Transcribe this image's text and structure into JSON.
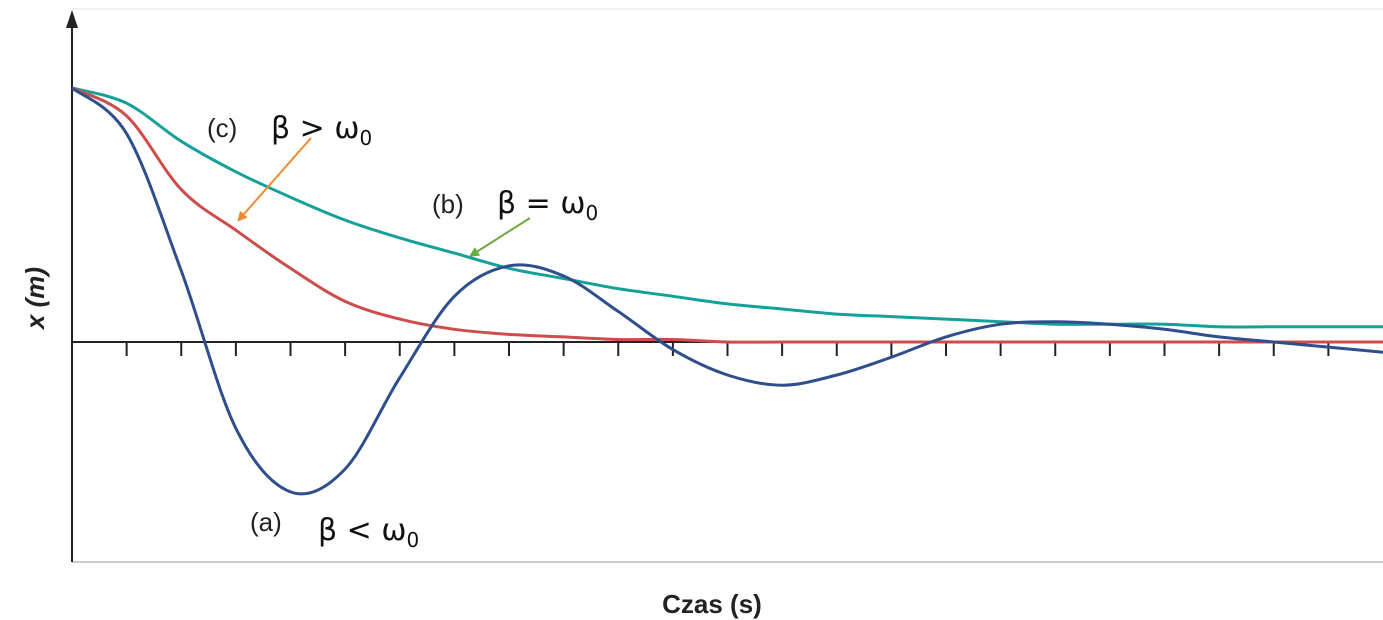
{
  "chart_data": {
    "type": "line",
    "title": "",
    "xlabel": "Czas (s)",
    "ylabel": "x (m)",
    "xlim": [
      0,
      24
    ],
    "ylim": [
      -1.0,
      1.3
    ],
    "x_ticks": [
      1,
      2,
      3,
      4,
      5,
      6,
      7,
      8,
      9,
      10,
      11,
      12,
      13,
      14,
      15,
      16,
      17,
      18,
      19,
      20,
      21,
      22,
      23
    ],
    "grid": false,
    "legend": "none",
    "colors": {
      "a": "#2e4f8c",
      "b": "#16a09a",
      "c": "#cf4c4c",
      "arrow_c": "#f08a32",
      "arrow_b": "#6aab3f",
      "axis": "#222222"
    },
    "series": [
      {
        "key": "a",
        "x": [
          0,
          1,
          2,
          3,
          4,
          5,
          6,
          7,
          8,
          9,
          10,
          11,
          12,
          13,
          14,
          15,
          16,
          17,
          18,
          19,
          20,
          21,
          22,
          23,
          24
        ],
        "y": [
          1.0,
          0.82,
          0.28,
          -0.34,
          -0.59,
          -0.5,
          -0.14,
          0.18,
          0.3,
          0.26,
          0.12,
          -0.03,
          -0.13,
          -0.17,
          -0.13,
          -0.06,
          0.02,
          0.07,
          0.08,
          0.07,
          0.05,
          0.02,
          0.0,
          -0.02,
          -0.04
        ]
      },
      {
        "key": "b",
        "x": [
          0,
          1,
          2,
          3,
          4,
          5,
          6,
          7,
          8,
          9,
          10,
          11,
          12,
          13,
          14,
          15,
          16,
          17,
          18,
          19,
          20,
          21,
          22,
          23,
          24
        ],
        "y": [
          1.0,
          0.94,
          0.79,
          0.67,
          0.57,
          0.48,
          0.41,
          0.35,
          0.29,
          0.25,
          0.21,
          0.18,
          0.15,
          0.13,
          0.11,
          0.1,
          0.09,
          0.08,
          0.07,
          0.07,
          0.07,
          0.06,
          0.06,
          0.06,
          0.06
        ]
      },
      {
        "key": "c",
        "x": [
          0,
          1,
          2,
          3,
          4,
          5,
          6,
          7,
          8,
          9,
          10,
          11,
          12,
          13,
          14,
          15,
          16,
          17,
          18,
          19,
          20,
          21,
          22,
          23,
          24
        ],
        "y": [
          1.0,
          0.89,
          0.6,
          0.44,
          0.29,
          0.16,
          0.09,
          0.05,
          0.03,
          0.02,
          0.01,
          0.01,
          0.0,
          0.0,
          0.0,
          0.0,
          0.0,
          0.0,
          0.0,
          0.0,
          0.0,
          0.0,
          0.0,
          0.0,
          0.0
        ]
      }
    ],
    "annotations": [
      {
        "key": "c",
        "tag": "(c)",
        "rel": "β > ω",
        "sub": "0",
        "anchor_x": 3.05,
        "anchor_y": 0.48
      },
      {
        "key": "b",
        "tag": "(b)",
        "rel": "β = ω",
        "sub": "0",
        "anchor_x": 7.3,
        "anchor_y": 0.34
      },
      {
        "key": "a",
        "tag": "(a)",
        "rel": "β < ω",
        "sub": "0"
      }
    ]
  }
}
